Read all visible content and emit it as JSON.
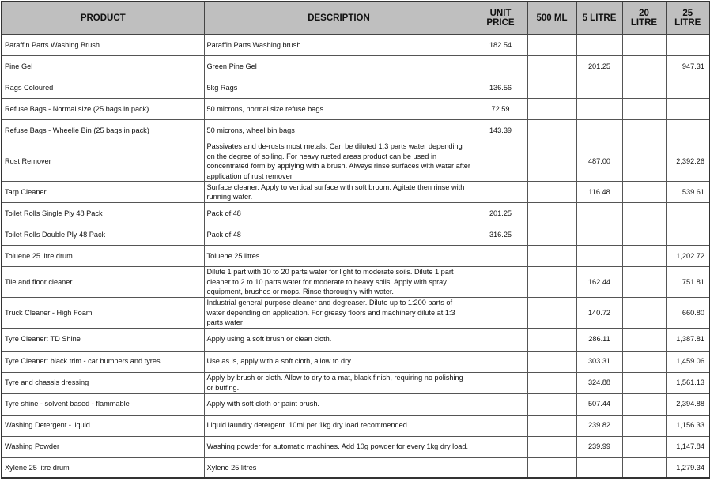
{
  "headers": [
    "PRODUCT",
    "DESCRIPTION",
    "UNIT PRICE",
    "500 ML",
    "5 LITRE",
    "20 LITRE",
    "25 LITRE"
  ],
  "rows": [
    {
      "product": "Paraffin Parts Washing Brush",
      "description": "Paraffin Parts Washing brush",
      "unit_price": "182.54",
      "ml500": "",
      "l5": "",
      "l20": "",
      "l25": ""
    },
    {
      "product": "Pine Gel",
      "description": "Green Pine Gel",
      "unit_price": "",
      "ml500": "",
      "l5": "201.25",
      "l20": "",
      "l25": "947.31"
    },
    {
      "product": "Rags Coloured",
      "description": "5kg Rags",
      "unit_price": "136.56",
      "ml500": "",
      "l5": "",
      "l20": "",
      "l25": ""
    },
    {
      "product": "Refuse Bags - Normal size (25 bags in pack)",
      "description": "50 microns, normal size refuse bags",
      "unit_price": "72.59",
      "ml500": "",
      "l5": "",
      "l20": "",
      "l25": ""
    },
    {
      "product": "Refuse Bags - Wheelie Bin (25 bags in pack)",
      "description": "50 microns, wheel bin bags",
      "unit_price": "143.39",
      "ml500": "",
      "l5": "",
      "l20": "",
      "l25": ""
    },
    {
      "product": "Rust Remover",
      "description": "Passivates and de-rusts most metals. Can be diluted 1:3 parts water depending on the degree of soiling. For heavy rusted areas product can be used in concentrated form by applying with a brush.  Always rinse surfaces with water after application of rust remover.",
      "unit_price": "",
      "ml500": "",
      "l5": "487.00",
      "l20": "",
      "l25": "2,392.26"
    },
    {
      "product": "Tarp Cleaner",
      "description": "Surface cleaner.  Apply to vertical surface with soft broom.  Agitate then rinse with running water.",
      "unit_price": "",
      "ml500": "",
      "l5": "116.48",
      "l20": "",
      "l25": "539.61"
    },
    {
      "product": "Toilet Rolls Single Ply 48 Pack",
      "description": "Pack of 48",
      "unit_price": "201.25",
      "ml500": "",
      "l5": "",
      "l20": "",
      "l25": ""
    },
    {
      "product": "Toilet Rolls Double Ply 48 Pack",
      "description": "Pack of 48",
      "unit_price": "316.25",
      "ml500": "",
      "l5": "",
      "l20": "",
      "l25": ""
    },
    {
      "product": "Toluene 25 litre drum",
      "description": "Toluene 25 litres",
      "unit_price": "",
      "ml500": "",
      "l5": "",
      "l20": "",
      "l25": "1,202.72"
    },
    {
      "product": "Tile and floor cleaner",
      "description": "Dilute 1 part with 10 to 20 parts water for light to moderate soils.  Dilute 1 part cleaner to 2 to 10 parts water for moderate to heavy soils.  Apply with spray equipment, brushes or mops.  Rinse thoroughly with water.",
      "unit_price": "",
      "ml500": "",
      "l5": "162.44",
      "l20": "",
      "l25": "751.81"
    },
    {
      "product": "Truck Cleaner - High Foam",
      "description": "Industrial general purpose cleaner and degreaser. Dilute up to 1:200 parts of water depending on application.  For greasy floors and machinery dilute at 1:3 parts water",
      "unit_price": "",
      "ml500": "",
      "l5": "140.72",
      "l20": "",
      "l25": "660.80"
    },
    {
      "product": "Tyre Cleaner:  TD Shine",
      "description": "Apply using a soft brush or clean cloth.",
      "unit_price": "",
      "ml500": "",
      "l5": "286.11",
      "l20": "",
      "l25": "1,387.81"
    },
    {
      "product": "Tyre Cleaner:  black trim - car bumpers and tyres",
      "description": "Use as is, apply with a soft cloth, allow to dry.",
      "unit_price": "",
      "ml500": "",
      "l5": "303.31",
      "l20": "",
      "l25": "1,459.06"
    },
    {
      "product": "Tyre and chassis dressing",
      "description": "Apply by brush or cloth.  Allow to dry to a mat, black finish, requiring no polishing or buffing.",
      "unit_price": "",
      "ml500": "",
      "l5": "324.88",
      "l20": "",
      "l25": "1,561.13"
    },
    {
      "product": "Tyre shine - solvent based - flammable",
      "description": "Apply with soft cloth or paint brush.",
      "unit_price": "",
      "ml500": "",
      "l5": "507.44",
      "l20": "",
      "l25": "2,394.88"
    },
    {
      "product": "Washing Detergent - liquid",
      "description": "Liquid laundry detergent.  10ml per 1kg dry load recommended.",
      "unit_price": "",
      "ml500": "",
      "l5": "239.82",
      "l20": "",
      "l25": "1,156.33"
    },
    {
      "product": "Washing Powder",
      "description": "Washing powder for automatic machines.  Add 10g powder for every 1kg dry load.",
      "unit_price": "",
      "ml500": "",
      "l5": "239.99",
      "l20": "",
      "l25": "1,147.84"
    },
    {
      "product": "Xylene 25 litre drum",
      "description": "Xylene 25 litres",
      "unit_price": "",
      "ml500": "",
      "l5": "",
      "l20": "",
      "l25": "1,279.34"
    }
  ]
}
